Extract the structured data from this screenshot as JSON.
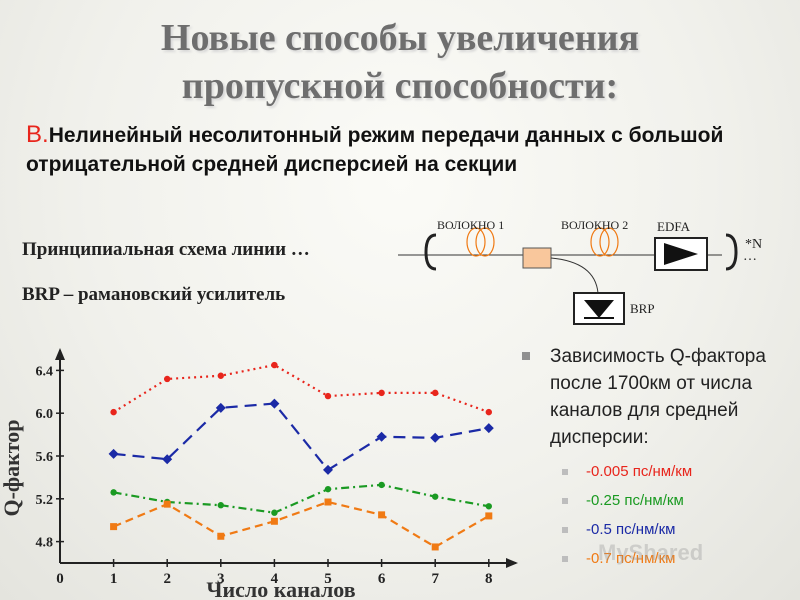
{
  "title_line1": "Новые способы увеличения",
  "title_line2": "пропускной способности:",
  "subtitle_letter": "В.",
  "subtitle_text": "Нелинейный несолитонный режим передачи данных с большой отрицательной средней дисперсией на секции",
  "schema_label": "Принципиальная схема линии …",
  "brp_label": "BRP – рамановский усилитель",
  "scheme": {
    "fiber1": "ВОЛОКНО 1",
    "fiber2": "ВОЛОКНО 2",
    "edfa": "EDFA",
    "repeat": "*N",
    "brp": "BRP",
    "dots_right": "…"
  },
  "legend": {
    "heading": "Зависимость Q-фактора после 1700км от числа каналов для средней дисперсии:"
  },
  "watermark": "MyShared",
  "chart_data": {
    "type": "line",
    "xlabel": "Число каналов",
    "ylabel": "Q-фактор",
    "xticks": [
      "0",
      "1",
      "2",
      "3",
      "4",
      "5",
      "6",
      "7",
      "8"
    ],
    "yticks": [
      "4.8",
      "5.2",
      "5.6",
      "6.0",
      "6.4"
    ],
    "xlim": [
      0,
      8.5
    ],
    "ylim": [
      4.6,
      6.6
    ],
    "x": [
      1,
      2,
      3,
      4,
      5,
      6,
      7,
      8
    ],
    "series": [
      {
        "name": "-0.005 пс/нм/км",
        "color": "#e8251c",
        "dash": "2,4",
        "values": [
          6.01,
          6.32,
          6.35,
          6.45,
          6.16,
          6.19,
          6.19,
          6.01
        ]
      },
      {
        "name": "-0.25 пс/нм/км",
        "color": "#1a9a22",
        "dash": "8,4,2,4",
        "values": [
          5.26,
          5.17,
          5.14,
          5.07,
          5.29,
          5.33,
          5.22,
          5.13
        ]
      },
      {
        "name": "-0.5 пс/нм/км",
        "color": "#1b2aa6",
        "dash": "12,7",
        "values": [
          5.62,
          5.57,
          6.05,
          6.09,
          5.47,
          5.78,
          5.77,
          5.86
        ]
      },
      {
        "name": "-0.7 пс/нм/км",
        "color": "#f07a14",
        "dash": "8,5",
        "values": [
          4.94,
          5.15,
          4.85,
          4.99,
          5.17,
          5.05,
          4.75,
          5.04
        ]
      }
    ]
  }
}
